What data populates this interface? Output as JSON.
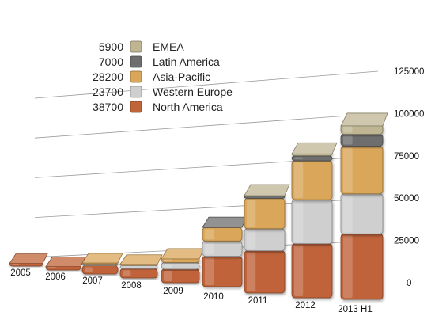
{
  "chart_data": {
    "type": "bar",
    "stacked": true,
    "categories": [
      "2005",
      "2006",
      "2007",
      "2008",
      "2009",
      "2010",
      "2011",
      "2012",
      "2013 H1"
    ],
    "series": [
      {
        "name": "North America",
        "values": [
          2500,
          3000,
          5000,
          5500,
          8000,
          18000,
          25000,
          32000,
          38700
        ],
        "color": "#c0643a"
      },
      {
        "name": "Western Europe",
        "values": [
          0,
          0,
          1000,
          2000,
          4000,
          9000,
          13000,
          26000,
          23700
        ],
        "color": "#cfcfcf"
      },
      {
        "name": "Asia-Pacific",
        "values": [
          0,
          0,
          1500,
          1500,
          3000,
          8000,
          18000,
          23000,
          28200
        ],
        "color": "#d9a65a"
      },
      {
        "name": "Latin America",
        "values": [
          0,
          0,
          0,
          0,
          0,
          1000,
          1500,
          3000,
          7000
        ],
        "color": "#6e6e6e"
      },
      {
        "name": "EMEA",
        "values": [
          0,
          0,
          0,
          0,
          0,
          0,
          1000,
          2000,
          5900
        ],
        "color": "#bfb593"
      }
    ],
    "legend_values": [
      "5900",
      "7000",
      "28200",
      "23700",
      "38700"
    ],
    "legend_order": [
      "EMEA",
      "Latin America",
      "Asia-Pacific",
      "Western Europe",
      "North America"
    ],
    "y_ticks": [
      "0",
      "25000",
      "50000",
      "75000",
      "100000",
      "125000"
    ],
    "ylim": [
      0,
      125000
    ],
    "title": "",
    "xlabel": "",
    "ylabel": "",
    "legend_position": "top-left",
    "grid": true
  }
}
